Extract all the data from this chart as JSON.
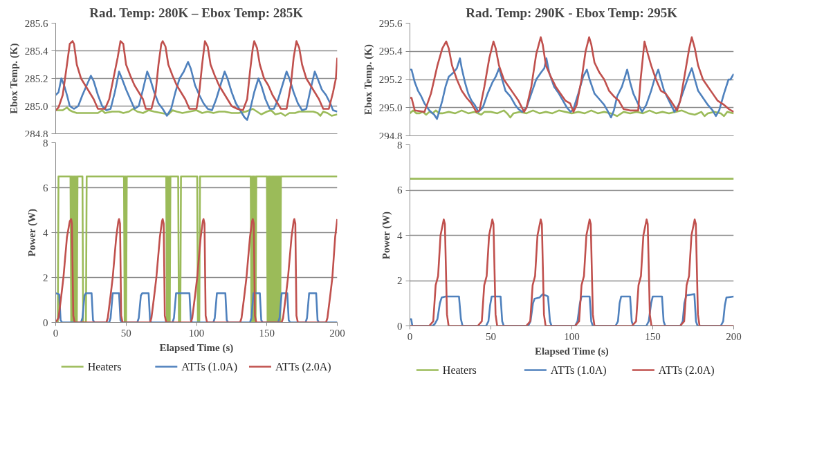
{
  "chart_data": [
    {
      "type": "line",
      "title": "Rad. Temp: 280K – Ebox Temp: 285K",
      "ylabel": "Ebox Temp. (K)",
      "xlim": [
        0,
        200
      ],
      "xticks": [
        0,
        50,
        100,
        150,
        200
      ],
      "ylim": [
        284.8,
        285.6
      ],
      "yticks": [
        {
          "value": 284.8,
          "label": "284.8"
        },
        {
          "value": 285.0,
          "label": "285.0"
        },
        {
          "value": 285.2,
          "label": "285.2"
        },
        {
          "value": 285.4,
          "label": "285.4"
        },
        {
          "value": 285.6,
          "label": "285.6"
        }
      ],
      "grid": "y",
      "tick_labels": "y",
      "series": [
        {
          "color": "#9bbb59",
          "x": [
            0,
            5,
            8,
            10,
            12,
            15,
            20,
            25,
            30,
            33,
            35,
            40,
            45,
            48,
            52,
            55,
            58,
            62,
            66,
            70,
            75,
            80,
            83,
            86,
            90,
            95,
            100,
            104,
            108,
            112,
            116,
            120,
            125,
            130,
            135,
            140,
            143,
            146,
            150,
            153,
            156,
            160,
            163,
            166,
            170,
            173,
            176,
            180,
            183,
            186,
            188,
            190,
            193,
            196,
            200
          ],
          "values": [
            284.97,
            284.97,
            284.99,
            284.97,
            284.96,
            284.95,
            284.95,
            284.95,
            284.95,
            284.97,
            284.95,
            284.96,
            284.96,
            284.95,
            284.96,
            284.98,
            284.96,
            284.95,
            284.97,
            284.96,
            284.95,
            284.94,
            284.97,
            284.96,
            284.95,
            284.96,
            284.97,
            284.95,
            284.96,
            284.95,
            284.96,
            284.96,
            284.95,
            284.95,
            284.96,
            284.98,
            284.96,
            284.94,
            284.96,
            284.97,
            284.94,
            284.95,
            284.93,
            284.95,
            284.95,
            284.96,
            284.96,
            284.96,
            284.96,
            284.95,
            284.93,
            284.96,
            284.95,
            284.93,
            284.94
          ]
        },
        {
          "color": "#4f81bd",
          "x": [
            0,
            2,
            4,
            6,
            8,
            10,
            13,
            16,
            19,
            22,
            25,
            27,
            30,
            33,
            36,
            39,
            42,
            45,
            47,
            50,
            53,
            56,
            59,
            62,
            65,
            67,
            70,
            73,
            76,
            79,
            82,
            85,
            88,
            91,
            94,
            96,
            99,
            102,
            105,
            108,
            111,
            114,
            117,
            120,
            122,
            125,
            128,
            131,
            134,
            136,
            138,
            141,
            144,
            146,
            149,
            152,
            155,
            158,
            161,
            164,
            166,
            169,
            172,
            175,
            178,
            181,
            184,
            186,
            189,
            192,
            195,
            197,
            200
          ],
          "values": [
            285.08,
            285.1,
            285.2,
            285.15,
            285.08,
            285.0,
            284.98,
            285.0,
            285.08,
            285.15,
            285.22,
            285.18,
            285.08,
            285.0,
            284.97,
            284.98,
            285.1,
            285.25,
            285.2,
            285.12,
            285.05,
            284.98,
            285.0,
            285.12,
            285.25,
            285.2,
            285.1,
            285.02,
            284.98,
            284.93,
            284.98,
            285.1,
            285.2,
            285.25,
            285.32,
            285.27,
            285.15,
            285.08,
            285.02,
            284.98,
            284.97,
            285.05,
            285.15,
            285.25,
            285.2,
            285.1,
            285.02,
            284.97,
            284.92,
            284.9,
            284.97,
            285.1,
            285.2,
            285.15,
            285.05,
            284.98,
            284.98,
            285.05,
            285.15,
            285.25,
            285.2,
            285.1,
            285.02,
            284.97,
            284.98,
            285.12,
            285.25,
            285.2,
            285.12,
            285.08,
            285.02,
            284.97,
            284.96
          ]
        },
        {
          "color": "#c0504d",
          "x": [
            0,
            2,
            5,
            8,
            10,
            12,
            13,
            15,
            18,
            21,
            24,
            27,
            30,
            35,
            38,
            41,
            44,
            46,
            48,
            50,
            53,
            56,
            59,
            62,
            64,
            68,
            71,
            73,
            75,
            76,
            78,
            80,
            83,
            86,
            89,
            92,
            95,
            100,
            102,
            104,
            106,
            108,
            110,
            113,
            116,
            119,
            122,
            125,
            129,
            133,
            136,
            138,
            140,
            141,
            143,
            145,
            148,
            151,
            154,
            157,
            160,
            164,
            167,
            169,
            171,
            173,
            175,
            178,
            181,
            184,
            187,
            190,
            194,
            197,
            199,
            200
          ],
          "values": [
            284.97,
            284.99,
            285.08,
            285.3,
            285.45,
            285.47,
            285.45,
            285.3,
            285.2,
            285.15,
            285.1,
            285.05,
            284.98,
            284.98,
            285.05,
            285.2,
            285.35,
            285.47,
            285.45,
            285.3,
            285.22,
            285.15,
            285.1,
            285.05,
            284.98,
            284.98,
            285.1,
            285.3,
            285.45,
            285.47,
            285.43,
            285.3,
            285.22,
            285.15,
            285.1,
            285.05,
            284.98,
            284.98,
            285.1,
            285.3,
            285.47,
            285.43,
            285.3,
            285.22,
            285.15,
            285.1,
            285.05,
            285.0,
            284.98,
            284.97,
            285.05,
            285.25,
            285.42,
            285.47,
            285.42,
            285.3,
            285.2,
            285.15,
            285.08,
            285.03,
            284.98,
            284.98,
            285.15,
            285.35,
            285.47,
            285.42,
            285.3,
            285.2,
            285.15,
            285.1,
            285.05,
            284.98,
            284.98,
            285.1,
            285.2,
            285.35
          ]
        }
      ]
    },
    {
      "type": "line",
      "xlabel": "Elapsed Time (s)",
      "ylabel": "Power (W)",
      "xlim": [
        0,
        200
      ],
      "xticks": [
        0,
        50,
        100,
        150,
        200
      ],
      "ylim": [
        0,
        8
      ],
      "yticks": [
        0,
        2,
        4,
        6,
        8
      ],
      "grid": "y",
      "legend": "bottom",
      "series": [
        {
          "name": "Heaters",
          "color": "#9bbb59",
          "x": [
            0,
            1.5,
            2,
            10.5,
            11,
            11.5,
            12,
            12.5,
            13,
            13.5,
            14,
            14.5,
            15,
            15.5,
            19,
            19.5,
            21.5,
            22,
            48.5,
            49,
            49.5,
            50,
            50.5,
            78.5,
            79,
            79.5,
            80,
            80.5,
            81,
            81.5,
            87,
            87.5,
            88.5,
            89,
            100.5,
            101,
            102,
            102.5,
            138.5,
            139,
            139.5,
            140,
            140.5,
            141,
            141.5,
            142,
            142.5,
            150,
            150.5,
            151,
            151.5,
            152,
            152.5,
            153,
            153.5,
            154,
            154.5,
            155,
            155.5,
            156,
            156.5,
            157,
            157.5,
            158,
            158.5,
            159,
            159.5,
            160,
            200
          ],
          "values": [
            0,
            0,
            6.5,
            6.5,
            0,
            6.5,
            0,
            6.5,
            0,
            6.5,
            0,
            6.5,
            0,
            6.5,
            6.5,
            0,
            0,
            6.5,
            6.5,
            0,
            6.5,
            0,
            6.5,
            6.5,
            0,
            6.5,
            0,
            6.5,
            0,
            6.5,
            6.5,
            0,
            0,
            6.5,
            6.5,
            0,
            0,
            6.5,
            6.5,
            0,
            6.5,
            0,
            6.5,
            0,
            6.5,
            0,
            6.5,
            6.5,
            0,
            6.5,
            0,
            6.5,
            0,
            6.5,
            0,
            6.5,
            0,
            6.5,
            0,
            6.5,
            0,
            6.5,
            0,
            6.5,
            0,
            6.5,
            0,
            6.5,
            6.5
          ]
        },
        {
          "name": "ATTs (1.0A)",
          "color": "#4f81bd",
          "x": [
            0,
            2.5,
            3.5,
            4.5,
            18,
            19,
            20.5,
            21.5,
            25.5,
            26.5,
            27.5,
            38,
            39,
            40.5,
            45,
            46,
            47,
            58,
            59,
            60.5,
            61.5,
            66,
            67,
            68,
            83,
            84,
            85.5,
            95,
            96,
            97,
            112,
            113,
            114.5,
            120.5,
            121.5,
            122.5,
            138,
            139,
            140.5,
            145,
            146,
            147,
            158,
            159,
            160.5,
            164.5,
            165.5,
            166.5,
            177.5,
            178.5,
            180,
            185,
            186,
            187,
            200
          ],
          "values": [
            1.3,
            1.25,
            0.1,
            0,
            0,
            0.2,
            1.2,
            1.3,
            1.3,
            0.1,
            0,
            0,
            0.2,
            1.3,
            1.3,
            0.1,
            0,
            0,
            0.2,
            1.2,
            1.3,
            1.3,
            0.1,
            0,
            0,
            0.2,
            1.3,
            1.3,
            0.1,
            0,
            0,
            0.2,
            1.3,
            1.3,
            0.1,
            0,
            0,
            0.2,
            1.3,
            1.3,
            0.1,
            0,
            0,
            0.2,
            1.3,
            1.3,
            0.1,
            0,
            0,
            0.2,
            1.3,
            1.3,
            0.1,
            0,
            0
          ]
        },
        {
          "name": "ATTs (2.0A)",
          "color": "#c0504d",
          "x": [
            0,
            2,
            4,
            5.5,
            8,
            10,
            11,
            11.5,
            12.5,
            13.5,
            36,
            37,
            39,
            40.5,
            43,
            44.5,
            45,
            45.7,
            46.5,
            47.5,
            67,
            68,
            70,
            71.5,
            74,
            75.5,
            76,
            76.7,
            77.5,
            78.5,
            96,
            97,
            99,
            100.5,
            103,
            104.5,
            105,
            105.7,
            106.5,
            107.5,
            131,
            132,
            134,
            135.5,
            138,
            139.5,
            140,
            140.7,
            141.5,
            142.5,
            160.5,
            161.5,
            163.5,
            165,
            167.5,
            169,
            169.5,
            170.2,
            171,
            172,
            192,
            193,
            195,
            196.5,
            198.5,
            200
          ],
          "values": [
            0,
            0.2,
            1.2,
            2.0,
            3.8,
            4.5,
            4.6,
            4.4,
            0.3,
            0,
            0,
            0.2,
            1.2,
            2.0,
            3.8,
            4.5,
            4.6,
            4.4,
            0.3,
            0,
            0,
            0.2,
            1.2,
            2.0,
            3.8,
            4.5,
            4.6,
            4.4,
            0.3,
            0,
            0,
            0.2,
            1.2,
            2.0,
            3.8,
            4.5,
            4.6,
            4.4,
            0.3,
            0,
            0,
            0.2,
            1.2,
            2.0,
            3.8,
            4.5,
            4.6,
            4.4,
            0.3,
            0,
            0,
            0.2,
            1.2,
            2.0,
            3.8,
            4.5,
            4.6,
            4.4,
            0.3,
            0,
            0,
            0.2,
            1.2,
            2.0,
            3.8,
            4.6
          ]
        }
      ]
    },
    {
      "type": "line",
      "title": "Rad. Temp: 290K - Ebox Temp: 295K",
      "ylabel": "Ebox Temp. (K)",
      "xlim": [
        0,
        200
      ],
      "xticks": [
        0,
        50,
        100,
        150,
        200
      ],
      "ylim": [
        294.8,
        295.6
      ],
      "yticks": [
        {
          "value": 294.8,
          "label": "294.8"
        },
        {
          "value": 295.0,
          "label": "295.0"
        },
        {
          "value": 295.2,
          "label": "295.2"
        },
        {
          "value": 295.4,
          "label": "295.4"
        },
        {
          "value": 295.6,
          "label": "295.6"
        }
      ],
      "grid": "y",
      "tick_labels": "y",
      "series": [
        {
          "color": "#9bbb59",
          "x": [
            0,
            2,
            4,
            6,
            8,
            10,
            12,
            14,
            16,
            18,
            20,
            24,
            28,
            32,
            36,
            40,
            44,
            46,
            50,
            54,
            58,
            60,
            62,
            64,
            68,
            72,
            76,
            80,
            84,
            88,
            92,
            96,
            100,
            104,
            108,
            112,
            116,
            120,
            124,
            128,
            132,
            136,
            140,
            144,
            148,
            152,
            156,
            160,
            164,
            168,
            172,
            176,
            180,
            182,
            184,
            188,
            192,
            194,
            196,
            200
          ],
          "values": [
            294.96,
            294.98,
            294.96,
            294.96,
            294.97,
            294.95,
            294.97,
            294.96,
            294.98,
            294.96,
            294.96,
            294.97,
            294.96,
            294.98,
            294.96,
            294.97,
            294.95,
            294.97,
            294.97,
            294.96,
            294.98,
            294.96,
            294.93,
            294.96,
            294.97,
            294.96,
            294.98,
            294.96,
            294.97,
            294.96,
            294.98,
            294.97,
            294.96,
            294.97,
            294.96,
            294.98,
            294.96,
            294.97,
            294.96,
            294.94,
            294.97,
            294.96,
            294.97,
            294.96,
            294.98,
            294.96,
            294.97,
            294.96,
            294.97,
            294.98,
            294.96,
            294.95,
            294.97,
            294.94,
            294.96,
            294.97,
            294.96,
            294.94,
            294.97,
            294.96
          ]
        },
        {
          "color": "#4f81bd",
          "x": [
            0,
            1,
            3,
            5,
            7,
            9,
            12,
            15,
            16.7,
            18,
            20,
            22,
            24,
            27,
            29,
            30.9,
            32,
            34,
            36,
            38,
            40,
            42.3,
            45,
            48,
            51,
            53,
            55.1,
            57,
            59,
            62,
            65,
            67,
            69.4,
            72,
            75,
            78,
            81,
            83,
            84.3,
            86,
            89,
            92,
            95,
            97,
            99.3,
            101,
            104,
            107,
            109.3,
            111,
            114,
            117,
            120,
            122,
            124.2,
            126,
            128,
            131,
            134.2,
            136,
            138,
            140,
            143.4,
            146,
            149,
            151,
            153.4,
            155,
            157,
            160,
            163.4,
            166,
            169,
            172,
            174.1,
            176,
            178,
            181,
            184,
            187,
            189,
            191,
            194,
            196.8,
            198,
            200
          ],
          "values": [
            295.27,
            295.27,
            295.18,
            295.12,
            295.08,
            295.03,
            294.98,
            294.95,
            294.92,
            294.97,
            295.05,
            295.15,
            295.22,
            295.25,
            295.28,
            295.35,
            295.28,
            295.18,
            295.1,
            295.05,
            295.02,
            294.97,
            295.0,
            295.1,
            295.18,
            295.22,
            295.28,
            295.2,
            295.12,
            295.08,
            295.02,
            294.99,
            294.97,
            295.0,
            295.1,
            295.2,
            295.25,
            295.28,
            295.35,
            295.25,
            295.15,
            295.1,
            295.04,
            295.0,
            294.97,
            294.99,
            295.1,
            295.22,
            295.27,
            295.2,
            295.1,
            295.06,
            295.02,
            294.98,
            294.93,
            294.98,
            295.08,
            295.15,
            295.27,
            295.18,
            295.1,
            295.05,
            294.97,
            295.02,
            295.12,
            295.2,
            295.27,
            295.2,
            295.12,
            295.05,
            294.97,
            295.02,
            295.12,
            295.22,
            295.28,
            295.2,
            295.12,
            295.07,
            295.02,
            294.98,
            294.94,
            294.98,
            295.1,
            295.2,
            295.2,
            295.24
          ]
        },
        {
          "color": "#c0504d",
          "x": [
            0,
            1,
            3,
            9,
            13,
            17,
            20,
            22.4,
            24,
            26,
            29,
            32,
            35,
            38,
            41,
            43,
            46,
            49,
            51.6,
            53,
            55,
            58,
            61,
            64,
            67,
            70.5,
            72,
            75,
            78,
            80.8,
            82,
            84,
            87,
            90,
            93,
            96,
            99,
            101,
            103,
            106,
            108.5,
            110.7,
            112,
            114,
            117,
            120,
            123,
            126,
            129,
            132,
            136,
            141,
            142.5,
            144.9,
            146.5,
            149,
            152,
            155,
            158,
            161,
            165,
            167,
            170,
            172.5,
            174.1,
            176,
            178,
            181,
            184,
            187,
            190,
            194,
            197,
            200
          ],
          "values": [
            295.07,
            295.07,
            294.98,
            294.97,
            295.1,
            295.3,
            295.42,
            295.47,
            295.42,
            295.3,
            295.2,
            295.12,
            295.07,
            295.03,
            294.97,
            294.98,
            295.15,
            295.35,
            295.47,
            295.42,
            295.3,
            295.2,
            295.15,
            295.1,
            295.05,
            294.97,
            295.0,
            295.15,
            295.38,
            295.5,
            295.45,
            295.3,
            295.22,
            295.15,
            295.1,
            295.05,
            295.03,
            294.97,
            295.02,
            295.2,
            295.4,
            295.5,
            295.45,
            295.32,
            295.25,
            295.2,
            295.12,
            295.08,
            295.05,
            294.99,
            294.98,
            294.98,
            295.2,
            295.47,
            295.4,
            295.3,
            295.2,
            295.12,
            295.1,
            295.05,
            294.98,
            295.05,
            295.25,
            295.42,
            295.5,
            295.42,
            295.3,
            295.2,
            295.15,
            295.1,
            295.05,
            295.02,
            294.99,
            294.97
          ]
        }
      ]
    },
    {
      "type": "line",
      "xlabel": "Elapsed Time (s)",
      "ylabel": "Power (W)",
      "xlim": [
        0,
        200
      ],
      "xticks": [
        0,
        50,
        100,
        150,
        200
      ],
      "ylim": [
        0,
        8
      ],
      "yticks": [
        0,
        2,
        4,
        6,
        8
      ],
      "grid": "y",
      "legend": "bottom",
      "series": [
        {
          "name": "Heaters",
          "color": "#9bbb59",
          "x": [
            0,
            200
          ],
          "values": [
            6.5,
            6.5
          ]
        },
        {
          "name": "ATTs (1.0A)",
          "color": "#4f81bd",
          "x": [
            0,
            0.8,
            1.5,
            14,
            15.5,
            17,
            18.5,
            19.6,
            22,
            30.3,
            31.5,
            32.5,
            47,
            48.5,
            49.5,
            50.5,
            56,
            57,
            58,
            73,
            74.5,
            76,
            77,
            80,
            82,
            85.3,
            86.5,
            87.5,
            102,
            103.5,
            105,
            106,
            111,
            112,
            113,
            127,
            128.5,
            129.5,
            130.5,
            136,
            137,
            138,
            146,
            147.5,
            149,
            150,
            155.7,
            156.7,
            157.7,
            167,
            168.5,
            169.5,
            170.7,
            175.7,
            176.7,
            177.7,
            192,
            193.5,
            194.5,
            195.5,
            200
          ],
          "values": [
            0.3,
            0.3,
            0,
            0,
            0.1,
            0.3,
            1.0,
            1.25,
            1.3,
            1.3,
            0.3,
            0,
            0,
            0.2,
            0.9,
            1.3,
            1.3,
            0.2,
            0,
            0,
            0.2,
            1.0,
            1.2,
            1.25,
            1.4,
            1.3,
            0.2,
            0,
            0,
            0.2,
            1.0,
            1.3,
            1.3,
            0.2,
            0,
            0,
            0.2,
            1.0,
            1.3,
            1.3,
            0.2,
            0,
            0,
            0.2,
            1.0,
            1.3,
            1.3,
            0.2,
            0,
            0,
            0.2,
            1.0,
            1.35,
            1.4,
            0.2,
            0,
            0,
            0.2,
            0.9,
            1.25,
            1.3
          ]
        },
        {
          "name": "ATTs (2.0A)",
          "color": "#c0504d",
          "x": [
            0,
            11.9,
            14.4,
            15.9,
            17.4,
            18.9,
            20.9,
            21.6,
            22.9,
            23.9,
            41.9,
            44.4,
            45.9,
            47.4,
            48.9,
            50.9,
            51.6,
            52.9,
            53.9,
            71.8,
            74.3,
            75.8,
            77.3,
            78.8,
            80.8,
            81.5,
            82.8,
            83.8,
            102,
            104.5,
            106,
            107.5,
            109,
            111,
            111.7,
            113,
            114,
            137.2,
            139.7,
            141.2,
            142.7,
            144.2,
            146.2,
            146.9,
            148.2,
            149.2,
            166.9,
            169.4,
            170.9,
            172.4,
            173.9,
            175.9,
            176.6,
            177.9,
            178.9,
            200
          ],
          "values": [
            0,
            0,
            0.2,
            1.8,
            2.2,
            4.0,
            4.7,
            4.5,
            0.5,
            0,
            0,
            0.2,
            1.8,
            2.2,
            4.0,
            4.7,
            4.5,
            0.5,
            0,
            0,
            0.2,
            1.8,
            2.2,
            4.0,
            4.7,
            4.5,
            0.5,
            0,
            0,
            0.2,
            1.8,
            2.2,
            4.0,
            4.7,
            4.5,
            0.5,
            0,
            0,
            0.2,
            1.8,
            2.2,
            4.0,
            4.7,
            4.5,
            0.5,
            0,
            0,
            0.2,
            1.8,
            2.2,
            4.0,
            4.7,
            4.5,
            0.5,
            0,
            0
          ]
        }
      ]
    }
  ]
}
